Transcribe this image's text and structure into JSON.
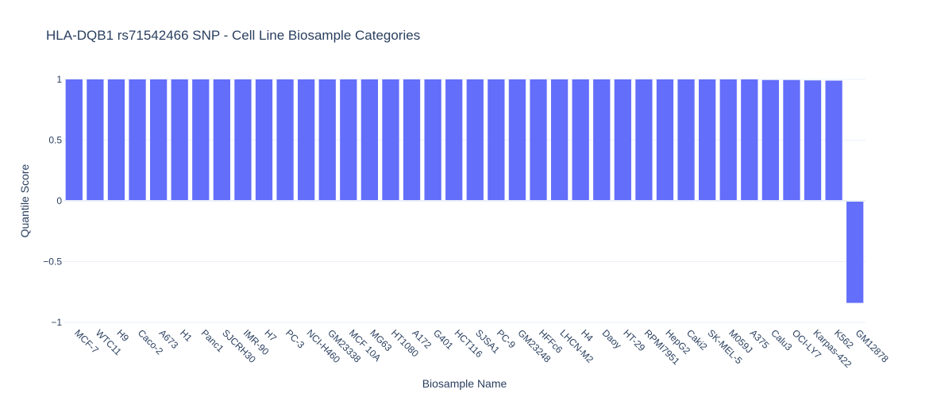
{
  "chart_data": {
    "type": "bar",
    "title": "HLA-DQB1 rs71542466 SNP - Cell Line Biosample Categories",
    "xlabel": "Biosample Name",
    "ylabel": "Quantile Score",
    "ylim": [
      -1,
      1
    ],
    "yticks": [
      1,
      0.5,
      0,
      -0.5,
      -1
    ],
    "ytick_labels": [
      "1",
      "0.5",
      "0",
      "−0.5",
      "−1"
    ],
    "grid": true,
    "bar_color": "#636efa",
    "categories": [
      "MCF-7",
      "WTC11",
      "H9",
      "Caco-2",
      "A673",
      "H1",
      "Panc1",
      "SJCRH30",
      "IMR-90",
      "H7",
      "PC-3",
      "NCI-H460",
      "GM23338",
      "MCF 10A",
      "MG63",
      "HT1080",
      "A172",
      "G401",
      "HCT116",
      "SJSA1",
      "PC-9",
      "GM23248",
      "HFFc6",
      "LHCN-M2",
      "H4",
      "Daoy",
      "HT-29",
      "RPMI7951",
      "HepG2",
      "Caki2",
      "SK-MEL-5",
      "M059J",
      "A375",
      "Calu3",
      "OCI-LY7",
      "Karpas-422",
      "K562",
      "GM12878"
    ],
    "values": [
      1,
      1,
      1,
      1,
      1,
      1,
      1,
      1,
      1,
      1,
      1,
      1,
      1,
      1,
      1,
      1,
      1,
      1,
      1,
      1,
      1,
      1,
      1,
      1,
      1,
      1,
      1,
      1,
      1,
      1,
      1,
      1,
      1,
      0.995,
      0.995,
      0.992,
      0.99,
      -0.84
    ]
  }
}
